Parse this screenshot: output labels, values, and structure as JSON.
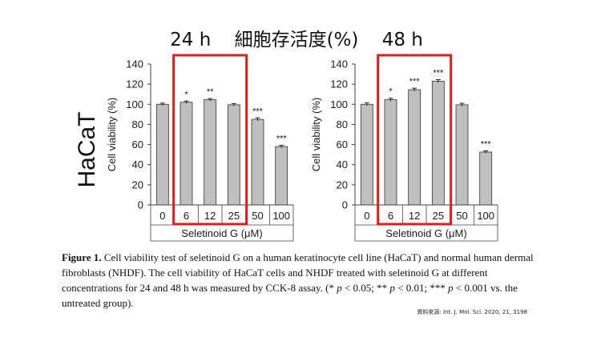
{
  "header": {
    "left": "24 h",
    "center": "細胞存活度(%)",
    "right": "48 h"
  },
  "row_label": "HaCaT",
  "chart_data": [
    {
      "type": "bar",
      "title": "24 h",
      "categories": [
        "0",
        "6",
        "12",
        "25",
        "50",
        "100"
      ],
      "values": [
        100,
        102,
        104.5,
        99.5,
        85,
        58
      ],
      "errors": [
        1.2,
        1.2,
        1.2,
        1.2,
        1.5,
        1.2
      ],
      "significance": [
        "",
        "*",
        "**",
        "",
        "***",
        "***"
      ],
      "xlabel": "Seletinoid G (μM)",
      "ylabel": "Cell viability (%)",
      "ylim": [
        0,
        140
      ],
      "yticks": [
        "0",
        "20",
        "40",
        "60",
        "80",
        "100",
        "120",
        "140"
      ],
      "highlight": [
        "6",
        "12",
        "25"
      ],
      "bar_color": "#bfbfbf",
      "highlight_color": "#e31b1b"
    },
    {
      "type": "bar",
      "title": "48 h",
      "categories": [
        "0",
        "6",
        "12",
        "25",
        "50",
        "100"
      ],
      "values": [
        100,
        104.5,
        114.5,
        123,
        99.5,
        52.5
      ],
      "errors": [
        1.5,
        1.5,
        1.5,
        1.5,
        1.5,
        1.2
      ],
      "significance": [
        "",
        "*",
        "***",
        "***",
        "",
        "***"
      ],
      "xlabel": "Seletinoid G (μM)",
      "ylabel": "Cell viability (%)",
      "ylim": [
        0,
        140
      ],
      "yticks": [
        "0",
        "20",
        "40",
        "60",
        "80",
        "100",
        "120",
        "140"
      ],
      "highlight": [
        "6",
        "12",
        "25"
      ],
      "bar_color": "#bfbfbf",
      "highlight_color": "#e31b1b"
    }
  ],
  "caption": {
    "label": "Figure 1.",
    "part1": " Cell viability test of seletinoid G on a human keratinocyte cell line (HaCaT) and normal human dermal fibroblasts (NHDF). The cell viability of HaCaT cells and NHDF treated with seletinoid G at different concentrations for 24 and 48 h was measured by CCK-8 assay. (* ",
    "p1": "p",
    "part2": " < 0.05; ** ",
    "p2": "p",
    "part3": " < 0.01; *** ",
    "p3": "p",
    "part4": " < 0.001 vs. the untreated group)."
  },
  "source": "資料來源: Int. J. Mol. Sci. 2020, 21, 3198"
}
